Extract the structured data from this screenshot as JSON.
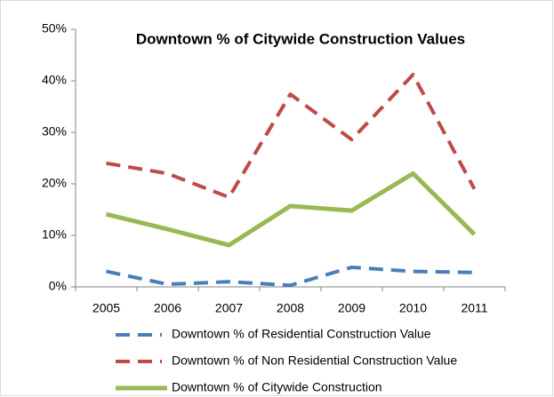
{
  "chart_data": {
    "type": "line",
    "title": "Downtown % of Citywide Construction Values",
    "categories": [
      "2005",
      "2006",
      "2007",
      "2008",
      "2009",
      "2010",
      "2011"
    ],
    "series": [
      {
        "name": "Downtown % of Residential Construction Value",
        "color": "#4a7ebb",
        "dash": true,
        "values": [
          3,
          0.5,
          1,
          0.3,
          3.8,
          3,
          2.8
        ]
      },
      {
        "name": "Downtown % of Non Residential Construction Value",
        "color": "#be4b48",
        "dash": true,
        "values": [
          24,
          22,
          17.4,
          37.4,
          28.6,
          41.2,
          19
        ]
      },
      {
        "name": "Downtown % of Citywide Construction",
        "color": "#98b954",
        "dash": false,
        "values": [
          14.1,
          11.2,
          8.1,
          15.7,
          14.8,
          22,
          10.2
        ]
      }
    ],
    "ylim": [
      0,
      50
    ],
    "yticks": [
      {
        "value": 0,
        "label": "0%"
      },
      {
        "value": 10,
        "label": "10%"
      },
      {
        "value": 20,
        "label": "20%"
      },
      {
        "value": 30,
        "label": "30%"
      },
      {
        "value": 40,
        "label": "40%"
      },
      {
        "value": 50,
        "label": "50%"
      }
    ]
  }
}
